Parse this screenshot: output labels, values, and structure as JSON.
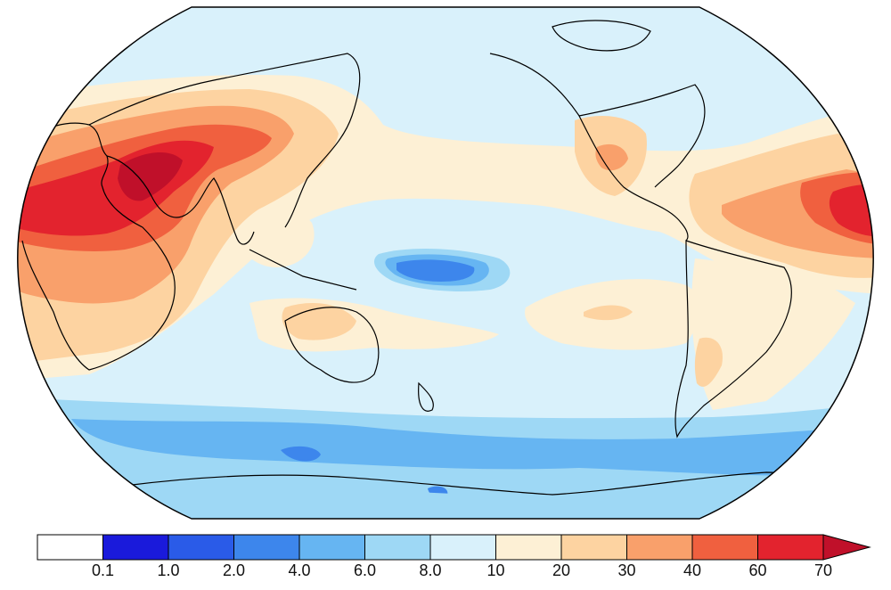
{
  "colorbar": {
    "labels": [
      "0.1",
      "1.0",
      "2.0",
      "4.0",
      "6.0",
      "8.0",
      "10",
      "20",
      "30",
      "40",
      "60",
      "70"
    ],
    "colors": [
      "#ffffff",
      "#1a1adb",
      "#2a5be8",
      "#3d86ec",
      "#66b5f2",
      "#9ed8f5",
      "#d9f1fb",
      "#fdf0d5",
      "#fdd3a1",
      "#f9a06b",
      "#f0603f",
      "#e3232e",
      "#c0102a"
    ]
  },
  "map": {
    "projection": "robinson",
    "palette": {
      "ocean_base": "#d9f1fb",
      "light_blue": "#9ed8f5",
      "mid_blue": "#66b5f2",
      "blue": "#3d86ec",
      "cream": "#fdf0d5",
      "peach": "#fdd3a1",
      "orange": "#f9a06b",
      "red_orange": "#f0603f",
      "red": "#e3232e",
      "dark_red": "#c0102a",
      "coast": "#000000"
    }
  }
}
